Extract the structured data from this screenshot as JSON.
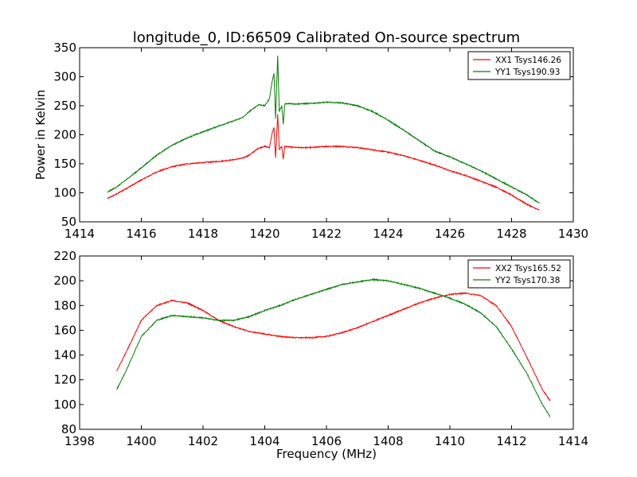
{
  "figure": {
    "title": "longitude_0, ID:66509 Calibrated On-source spectrum",
    "xlabel": "Frequency (MHz)"
  },
  "chart_data": [
    {
      "type": "line",
      "ylabel": "Power in Kelvin",
      "xlim": [
        1414,
        1430
      ],
      "ylim": [
        50,
        350
      ],
      "xticks": [
        1414,
        1416,
        1418,
        1420,
        1422,
        1424,
        1426,
        1428,
        1430
      ],
      "yticks": [
        50,
        100,
        150,
        200,
        250,
        300,
        350
      ],
      "grid": false,
      "legend_position": "top-right",
      "series": [
        {
          "name": "XX1 Tsys146.26",
          "color": "#ff0000",
          "points": [
            [
              1414.9,
              90
            ],
            [
              1415.2,
              98
            ],
            [
              1415.5,
              107
            ],
            [
              1416.0,
              122
            ],
            [
              1416.5,
              136
            ],
            [
              1417.0,
              145
            ],
            [
              1417.5,
              150
            ],
            [
              1418.0,
              152
            ],
            [
              1418.5,
              154
            ],
            [
              1419.0,
              157
            ],
            [
              1419.3,
              160
            ],
            [
              1419.5,
              165
            ],
            [
              1419.8,
              177
            ],
            [
              1420.0,
              180
            ],
            [
              1420.15,
              178
            ],
            [
              1420.25,
              205
            ],
            [
              1420.3,
              212
            ],
            [
              1420.35,
              160
            ],
            [
              1420.42,
              235
            ],
            [
              1420.47,
              175
            ],
            [
              1420.55,
              180
            ],
            [
              1420.6,
              158
            ],
            [
              1420.65,
              180
            ],
            [
              1420.8,
              179
            ],
            [
              1421.0,
              178
            ],
            [
              1421.5,
              178
            ],
            [
              1422.0,
              180
            ],
            [
              1422.5,
              180
            ],
            [
              1423.0,
              178
            ],
            [
              1423.5,
              174
            ],
            [
              1424.0,
              170
            ],
            [
              1424.5,
              164
            ],
            [
              1425.0,
              156
            ],
            [
              1425.5,
              148
            ],
            [
              1426.0,
              138
            ],
            [
              1426.5,
              130
            ],
            [
              1427.0,
              120
            ],
            [
              1427.5,
              110
            ],
            [
              1428.0,
              96
            ],
            [
              1428.5,
              80
            ],
            [
              1428.9,
              70
            ]
          ]
        },
        {
          "name": "YY1 Tsys190.93",
          "color": "#008000",
          "points": [
            [
              1414.9,
              101
            ],
            [
              1415.2,
              110
            ],
            [
              1415.5,
              122
            ],
            [
              1416.0,
              143
            ],
            [
              1416.5,
              165
            ],
            [
              1417.0,
              182
            ],
            [
              1417.5,
              195
            ],
            [
              1418.0,
              205
            ],
            [
              1418.5,
              215
            ],
            [
              1419.0,
              224
            ],
            [
              1419.3,
              230
            ],
            [
              1419.5,
              240
            ],
            [
              1419.8,
              252
            ],
            [
              1420.0,
              250
            ],
            [
              1420.15,
              262
            ],
            [
              1420.25,
              295
            ],
            [
              1420.3,
              305
            ],
            [
              1420.35,
              228
            ],
            [
              1420.42,
              337
            ],
            [
              1420.47,
              240
            ],
            [
              1420.55,
              250
            ],
            [
              1420.6,
              218
            ],
            [
              1420.65,
              253
            ],
            [
              1420.8,
              254
            ],
            [
              1421.0,
              253
            ],
            [
              1421.5,
              254
            ],
            [
              1422.0,
              256
            ],
            [
              1422.5,
              255
            ],
            [
              1423.0,
              250
            ],
            [
              1423.5,
              240
            ],
            [
              1424.0,
              225
            ],
            [
              1424.5,
              208
            ],
            [
              1425.0,
              190
            ],
            [
              1425.5,
              172
            ],
            [
              1426.0,
              162
            ],
            [
              1426.5,
              150
            ],
            [
              1427.0,
              138
            ],
            [
              1427.5,
              124
            ],
            [
              1428.0,
              110
            ],
            [
              1428.5,
              96
            ],
            [
              1428.9,
              82
            ]
          ]
        }
      ]
    },
    {
      "type": "line",
      "ylabel": "",
      "xlim": [
        1398,
        1414
      ],
      "ylim": [
        80,
        220
      ],
      "xticks": [
        1398,
        1400,
        1402,
        1404,
        1406,
        1408,
        1410,
        1412,
        1414
      ],
      "yticks": [
        80,
        100,
        120,
        140,
        160,
        180,
        200,
        220
      ],
      "grid": false,
      "legend_position": "top-right",
      "series": [
        {
          "name": "XX2 Tsys165.52",
          "color": "#ff0000",
          "points": [
            [
              1399.2,
              127
            ],
            [
              1399.5,
              142
            ],
            [
              1400.0,
              168
            ],
            [
              1400.5,
              180
            ],
            [
              1401.0,
              184
            ],
            [
              1401.5,
              182
            ],
            [
              1402.0,
              176
            ],
            [
              1402.5,
              168
            ],
            [
              1403.0,
              163
            ],
            [
              1403.5,
              159
            ],
            [
              1404.0,
              157
            ],
            [
              1404.5,
              155
            ],
            [
              1405.0,
              154
            ],
            [
              1405.5,
              154
            ],
            [
              1406.0,
              155
            ],
            [
              1406.5,
              158
            ],
            [
              1407.0,
              162
            ],
            [
              1407.5,
              167
            ],
            [
              1408.0,
              172
            ],
            [
              1408.5,
              177
            ],
            [
              1409.0,
              182
            ],
            [
              1409.5,
              186
            ],
            [
              1410.0,
              189
            ],
            [
              1410.5,
              190
            ],
            [
              1411.0,
              188
            ],
            [
              1411.5,
              180
            ],
            [
              1412.0,
              163
            ],
            [
              1412.5,
              138
            ],
            [
              1413.0,
              112
            ],
            [
              1413.25,
              103
            ]
          ]
        },
        {
          "name": "YY2 Tsys170.38",
          "color": "#008000",
          "points": [
            [
              1399.2,
              112
            ],
            [
              1399.5,
              127
            ],
            [
              1400.0,
              155
            ],
            [
              1400.5,
              168
            ],
            [
              1401.0,
              172
            ],
            [
              1401.5,
              171
            ],
            [
              1402.0,
              170
            ],
            [
              1402.5,
              168
            ],
            [
              1403.0,
              168
            ],
            [
              1403.5,
              171
            ],
            [
              1404.0,
              176
            ],
            [
              1404.5,
              180
            ],
            [
              1405.0,
              185
            ],
            [
              1405.5,
              189
            ],
            [
              1406.0,
              193
            ],
            [
              1406.5,
              197
            ],
            [
              1407.0,
              199
            ],
            [
              1407.5,
              201
            ],
            [
              1408.0,
              200
            ],
            [
              1408.5,
              197
            ],
            [
              1409.0,
              194
            ],
            [
              1409.5,
              190
            ],
            [
              1410.0,
              186
            ],
            [
              1410.5,
              181
            ],
            [
              1411.0,
              174
            ],
            [
              1411.5,
              163
            ],
            [
              1412.0,
              145
            ],
            [
              1412.5,
              125
            ],
            [
              1413.0,
              100
            ],
            [
              1413.25,
              90
            ]
          ]
        }
      ]
    }
  ]
}
